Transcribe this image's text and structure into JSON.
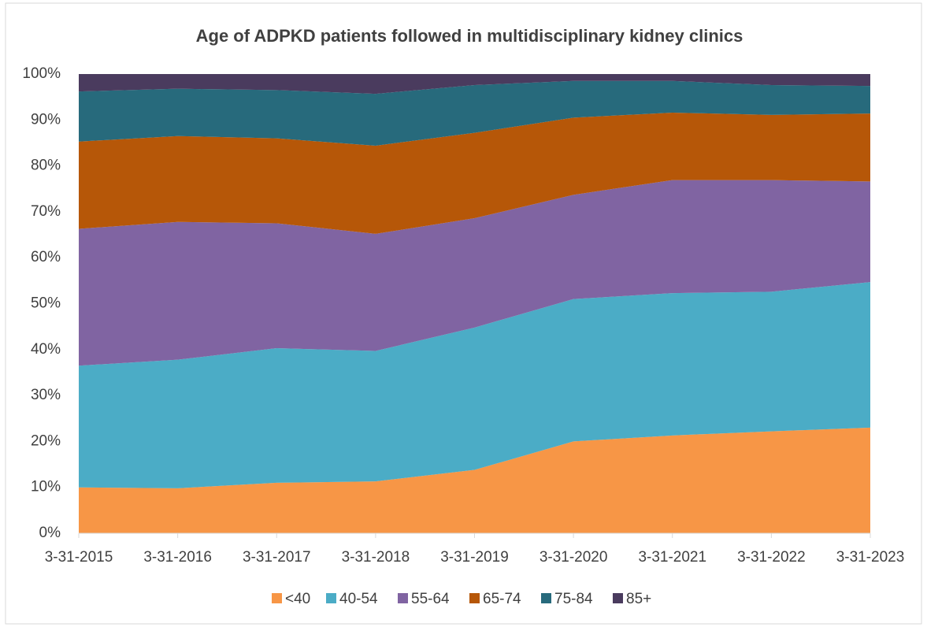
{
  "chart_data": {
    "type": "stacked_area_100",
    "title": "Age of ADPKD patients followed in multidisciplinary kidney clinics",
    "categories": [
      "3-31-2015",
      "3-31-2016",
      "3-31-2017",
      "3-31-2018",
      "3-31-2019",
      "3-31-2020",
      "3-31-2021",
      "3-31-2022",
      "3-31-2023"
    ],
    "series": [
      {
        "name": "<40",
        "color": "#f79646",
        "values": [
          10,
          9.8,
          11,
          11.3,
          13.8,
          20,
          21.3,
          22.2,
          23
        ]
      },
      {
        "name": "40-54",
        "color": "#4bacc6",
        "values": [
          26.5,
          28,
          29.3,
          28.4,
          31,
          31,
          31,
          30.4,
          31.7
        ]
      },
      {
        "name": "55-64",
        "color": "#8064a2",
        "values": [
          29.8,
          30,
          27.2,
          25.5,
          23.8,
          22.7,
          24.6,
          24.3,
          21.9
        ]
      },
      {
        "name": "65-74",
        "color": "#b65708",
        "values": [
          19,
          18.7,
          18.5,
          19.2,
          18.6,
          16.8,
          14.7,
          14.2,
          14.8
        ]
      },
      {
        "name": "75-84",
        "color": "#276a7c",
        "values": [
          10.9,
          10.3,
          10.5,
          11.3,
          10.4,
          8,
          6.9,
          6.5,
          6
        ]
      },
      {
        "name": "85+",
        "color": "#4a3b5e",
        "values": [
          3.8,
          3.2,
          3.5,
          4.3,
          2.4,
          1.5,
          1.5,
          2.4,
          2.6
        ]
      }
    ],
    "ylim": [
      0,
      100
    ],
    "yticks": [
      {
        "value": 0,
        "label": "0%"
      },
      {
        "value": 10,
        "label": "10%"
      },
      {
        "value": 20,
        "label": "20%"
      },
      {
        "value": 30,
        "label": "30%"
      },
      {
        "value": 40,
        "label": "40%"
      },
      {
        "value": 50,
        "label": "50%"
      },
      {
        "value": 60,
        "label": "60%"
      },
      {
        "value": 70,
        "label": "70%"
      },
      {
        "value": 80,
        "label": "80%"
      },
      {
        "value": 90,
        "label": "90%"
      },
      {
        "value": 100,
        "label": "100%"
      }
    ],
    "grid": false,
    "legend": "bottom"
  }
}
